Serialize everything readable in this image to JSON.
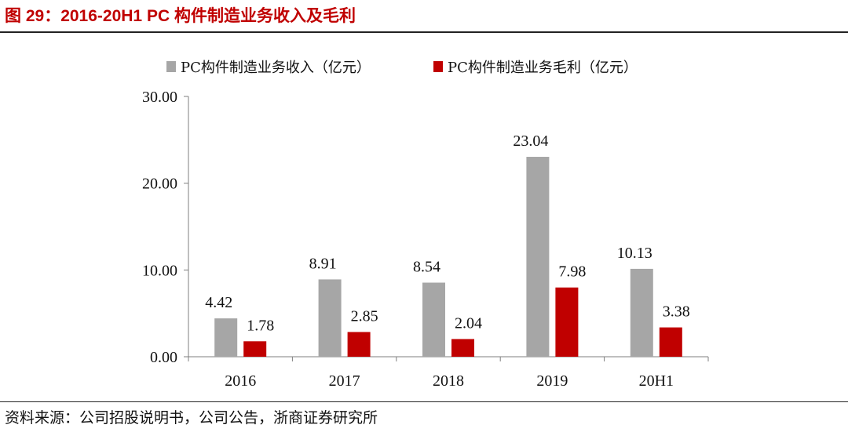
{
  "figure": {
    "title": "图 29：2016-20H1 PC 构件制造业务收入及毛利",
    "source": "资料来源：公司招股说明书，公司公告，浙商证券研究所"
  },
  "colors": {
    "revenue": "#a6a6a6",
    "profit": "#c00000",
    "title": "#c00000"
  },
  "chart_data": {
    "type": "bar",
    "title": "",
    "xlabel": "",
    "ylabel": "",
    "categories": [
      "2016",
      "2017",
      "2018",
      "2019",
      "20H1"
    ],
    "series": [
      {
        "name": "PC构件制造业务收入（亿元）",
        "values": [
          4.42,
          8.91,
          8.54,
          23.04,
          10.13
        ],
        "labels": [
          "4.42",
          "8.91",
          "8.54",
          "23.04",
          "10.13"
        ]
      },
      {
        "name": "PC构件制造业务毛利（亿元）",
        "values": [
          1.78,
          2.85,
          2.04,
          7.98,
          3.38
        ],
        "labels": [
          "1.78",
          "2.85",
          "2.04",
          "7.98",
          "3.38"
        ]
      }
    ],
    "ylim": [
      0,
      30
    ],
    "yticks": [
      0,
      10,
      20,
      30
    ],
    "ytick_labels": [
      "0.00",
      "10.00",
      "20.00",
      "30.00"
    ],
    "legend_position": "top-center",
    "grid": false
  }
}
